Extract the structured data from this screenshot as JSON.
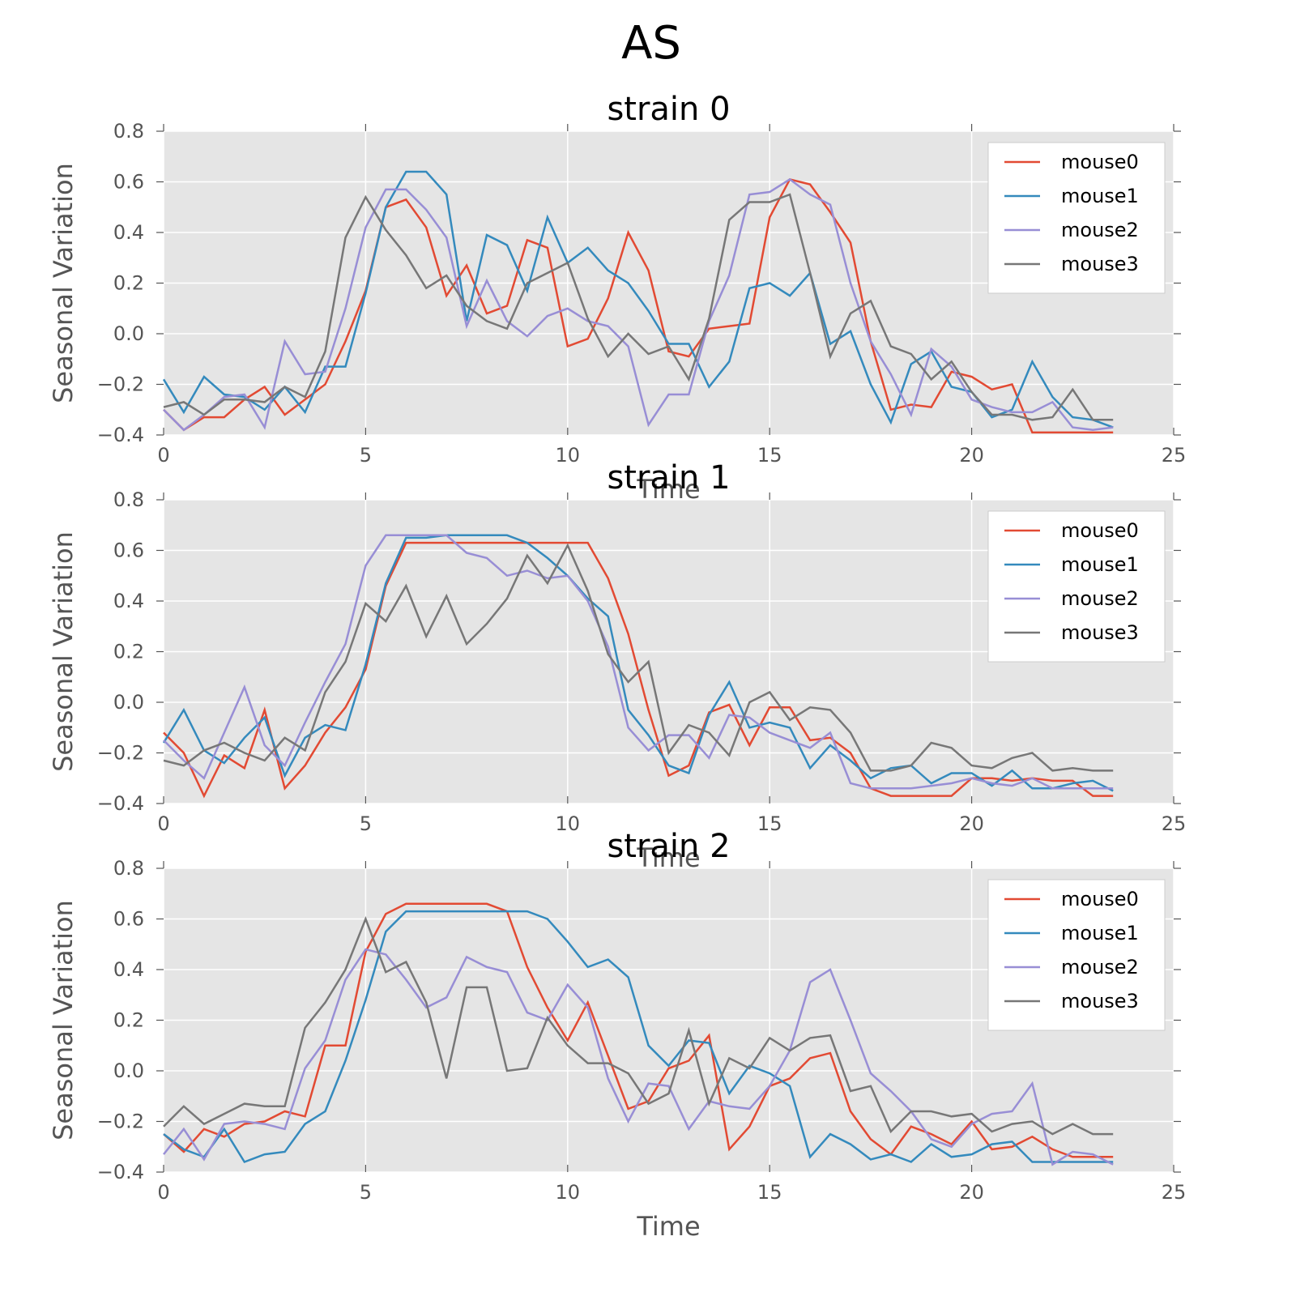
{
  "figure": {
    "title": "AS"
  },
  "colors": {
    "background": "#E5E5E5",
    "grid": "#FFFFFF",
    "series": [
      "#E24A33",
      "#348ABD",
      "#988ED5",
      "#777777"
    ]
  },
  "chart_data": [
    {
      "type": "line",
      "title": "strain 0",
      "xlabel": "Time",
      "ylabel": "Seasonal Variation",
      "xlim": [
        0,
        25
      ],
      "ylim": [
        -0.4,
        0.8
      ],
      "xticks": [
        "0",
        "5",
        "10",
        "15",
        "20",
        "25"
      ],
      "yticks": [
        "−0.4",
        "−0.2",
        "0.0",
        "0.2",
        "0.4",
        "0.6",
        "0.8"
      ],
      "grid": true,
      "legend": "top-right",
      "x": [
        0,
        0.5,
        1,
        1.5,
        2,
        2.5,
        3,
        3.5,
        4,
        4.5,
        5,
        5.5,
        6,
        6.5,
        7,
        7.5,
        8,
        8.5,
        9,
        9.5,
        10,
        10.5,
        11,
        11.5,
        12,
        12.5,
        13,
        13.5,
        14,
        14.5,
        15,
        15.5,
        16,
        16.5,
        17,
        17.5,
        18,
        18.5,
        19,
        19.5,
        20,
        20.5,
        21,
        21.5,
        22,
        22.5,
        23,
        23.5
      ],
      "series": [
        {
          "name": "mouse0",
          "values": [
            -0.3,
            -0.38,
            -0.33,
            -0.33,
            -0.26,
            -0.21,
            -0.32,
            -0.26,
            -0.2,
            -0.03,
            0.17,
            0.5,
            0.53,
            0.42,
            0.15,
            0.27,
            0.08,
            0.11,
            0.37,
            0.34,
            -0.05,
            -0.02,
            0.14,
            0.4,
            0.25,
            -0.07,
            -0.09,
            0.02,
            0.03,
            0.04,
            0.46,
            0.61,
            0.59,
            0.48,
            0.36,
            -0.03,
            -0.3,
            -0.28,
            -0.29,
            -0.15,
            -0.17,
            -0.22,
            -0.2,
            -0.39,
            -0.39,
            -0.39,
            -0.39,
            -0.39
          ]
        },
        {
          "name": "mouse1",
          "values": [
            -0.18,
            -0.31,
            -0.17,
            -0.24,
            -0.25,
            -0.3,
            -0.21,
            -0.31,
            -0.13,
            -0.13,
            0.16,
            0.5,
            0.64,
            0.64,
            0.55,
            0.05,
            0.39,
            0.35,
            0.17,
            0.46,
            0.28,
            0.34,
            0.25,
            0.2,
            0.09,
            -0.04,
            -0.04,
            -0.21,
            -0.11,
            0.18,
            0.2,
            0.15,
            0.24,
            -0.04,
            0.01,
            -0.2,
            -0.35,
            -0.12,
            -0.07,
            -0.21,
            -0.23,
            -0.33,
            -0.3,
            -0.11,
            -0.25,
            -0.33,
            -0.34,
            -0.37
          ]
        },
        {
          "name": "mouse2",
          "values": [
            -0.3,
            -0.38,
            -0.32,
            -0.25,
            -0.24,
            -0.37,
            -0.03,
            -0.16,
            -0.15,
            0.1,
            0.42,
            0.57,
            0.57,
            0.49,
            0.38,
            0.03,
            0.21,
            0.05,
            -0.01,
            0.07,
            0.1,
            0.05,
            0.03,
            -0.05,
            -0.36,
            -0.24,
            -0.24,
            0.05,
            0.23,
            0.55,
            0.56,
            0.61,
            0.55,
            0.51,
            0.2,
            -0.03,
            -0.16,
            -0.32,
            -0.06,
            -0.13,
            -0.26,
            -0.29,
            -0.31,
            -0.31,
            -0.27,
            -0.37,
            -0.38,
            -0.37
          ]
        },
        {
          "name": "mouse3",
          "values": [
            -0.29,
            -0.27,
            -0.32,
            -0.26,
            -0.26,
            -0.27,
            -0.21,
            -0.25,
            -0.07,
            0.38,
            0.54,
            0.41,
            0.31,
            0.18,
            0.23,
            0.11,
            0.05,
            0.02,
            0.2,
            0.24,
            0.28,
            0.06,
            -0.09,
            0.0,
            -0.08,
            -0.05,
            -0.18,
            0.06,
            0.45,
            0.52,
            0.52,
            0.55,
            0.24,
            -0.09,
            0.08,
            0.13,
            -0.05,
            -0.08,
            -0.18,
            -0.11,
            -0.23,
            -0.32,
            -0.32,
            -0.34,
            -0.33,
            -0.22,
            -0.34,
            -0.34
          ]
        }
      ]
    },
    {
      "type": "line",
      "title": "strain 1",
      "xlabel": "Time",
      "ylabel": "Seasonal Variation",
      "xlim": [
        0,
        25
      ],
      "ylim": [
        -0.4,
        0.8
      ],
      "xticks": [
        "0",
        "5",
        "10",
        "15",
        "20",
        "25"
      ],
      "yticks": [
        "−0.4",
        "−0.2",
        "0.0",
        "0.2",
        "0.4",
        "0.6",
        "0.8"
      ],
      "grid": true,
      "legend": "top-right",
      "x": [
        0,
        0.5,
        1,
        1.5,
        2,
        2.5,
        3,
        3.5,
        4,
        4.5,
        5,
        5.5,
        6,
        6.5,
        7,
        7.5,
        8,
        8.5,
        9,
        9.5,
        10,
        10.5,
        11,
        11.5,
        12,
        12.5,
        13,
        13.5,
        14,
        14.5,
        15,
        15.5,
        16,
        16.5,
        17,
        17.5,
        18,
        18.5,
        19,
        19.5,
        20,
        20.5,
        21,
        21.5,
        22,
        22.5,
        23,
        23.5
      ],
      "series": [
        {
          "name": "mouse0",
          "values": [
            -0.12,
            -0.2,
            -0.37,
            -0.21,
            -0.26,
            -0.03,
            -0.34,
            -0.25,
            -0.12,
            -0.02,
            0.13,
            0.46,
            0.63,
            0.63,
            0.63,
            0.63,
            0.63,
            0.63,
            0.63,
            0.63,
            0.63,
            0.63,
            0.49,
            0.27,
            -0.03,
            -0.29,
            -0.25,
            -0.04,
            -0.01,
            -0.17,
            -0.02,
            -0.02,
            -0.15,
            -0.14,
            -0.2,
            -0.34,
            -0.37,
            -0.37,
            -0.37,
            -0.37,
            -0.3,
            -0.3,
            -0.31,
            -0.3,
            -0.31,
            -0.31,
            -0.37,
            -0.37
          ]
        },
        {
          "name": "mouse1",
          "values": [
            -0.16,
            -0.03,
            -0.19,
            -0.24,
            -0.14,
            -0.06,
            -0.29,
            -0.14,
            -0.09,
            -0.11,
            0.15,
            0.47,
            0.65,
            0.65,
            0.66,
            0.66,
            0.66,
            0.66,
            0.63,
            0.57,
            0.5,
            0.41,
            0.34,
            -0.03,
            -0.13,
            -0.25,
            -0.28,
            -0.05,
            0.08,
            -0.1,
            -0.08,
            -0.1,
            -0.26,
            -0.17,
            -0.23,
            -0.3,
            -0.26,
            -0.25,
            -0.32,
            -0.28,
            -0.28,
            -0.33,
            -0.27,
            -0.34,
            -0.34,
            -0.32,
            -0.31,
            -0.35
          ]
        },
        {
          "name": "mouse2",
          "values": [
            -0.15,
            -0.23,
            -0.3,
            -0.12,
            0.06,
            -0.17,
            -0.25,
            -0.08,
            0.08,
            0.23,
            0.54,
            0.66,
            0.66,
            0.66,
            0.66,
            0.59,
            0.57,
            0.5,
            0.52,
            0.49,
            0.5,
            0.4,
            0.22,
            -0.1,
            -0.19,
            -0.13,
            -0.13,
            -0.22,
            -0.05,
            -0.06,
            -0.12,
            -0.15,
            -0.18,
            -0.12,
            -0.32,
            -0.34,
            -0.34,
            -0.34,
            -0.33,
            -0.32,
            -0.3,
            -0.32,
            -0.33,
            -0.3,
            -0.34,
            -0.34,
            -0.34,
            -0.34
          ]
        },
        {
          "name": "mouse3",
          "values": [
            -0.23,
            -0.25,
            -0.19,
            -0.16,
            -0.2,
            -0.23,
            -0.14,
            -0.19,
            0.04,
            0.16,
            0.39,
            0.32,
            0.46,
            0.26,
            0.42,
            0.23,
            0.31,
            0.41,
            0.58,
            0.47,
            0.62,
            0.44,
            0.19,
            0.08,
            0.16,
            -0.2,
            -0.09,
            -0.12,
            -0.21,
            0.0,
            0.04,
            -0.07,
            -0.02,
            -0.03,
            -0.12,
            -0.27,
            -0.27,
            -0.25,
            -0.16,
            -0.18,
            -0.25,
            -0.26,
            -0.22,
            -0.2,
            -0.27,
            -0.26,
            -0.27,
            -0.27
          ]
        }
      ]
    },
    {
      "type": "line",
      "title": "strain 2",
      "xlabel": "Time",
      "ylabel": "Seasonal Variation",
      "xlim": [
        0,
        25
      ],
      "ylim": [
        -0.4,
        0.8
      ],
      "xticks": [
        "0",
        "5",
        "10",
        "15",
        "20",
        "25"
      ],
      "yticks": [
        "−0.4",
        "−0.2",
        "0.0",
        "0.2",
        "0.4",
        "0.6",
        "0.8"
      ],
      "grid": true,
      "legend": "top-right",
      "x": [
        0,
        0.5,
        1,
        1.5,
        2,
        2.5,
        3,
        3.5,
        4,
        4.5,
        5,
        5.5,
        6,
        6.5,
        7,
        7.5,
        8,
        8.5,
        9,
        9.5,
        10,
        10.5,
        11,
        11.5,
        12,
        12.5,
        13,
        13.5,
        14,
        14.5,
        15,
        15.5,
        16,
        16.5,
        17,
        17.5,
        18,
        18.5,
        19,
        19.5,
        20,
        20.5,
        21,
        21.5,
        22,
        22.5,
        23,
        23.5
      ],
      "series": [
        {
          "name": "mouse0",
          "values": [
            -0.25,
            -0.32,
            -0.23,
            -0.26,
            -0.21,
            -0.2,
            -0.16,
            -0.18,
            0.1,
            0.1,
            0.47,
            0.62,
            0.66,
            0.66,
            0.66,
            0.66,
            0.66,
            0.63,
            0.41,
            0.25,
            0.12,
            0.27,
            0.06,
            -0.15,
            -0.12,
            0.01,
            0.04,
            0.14,
            -0.31,
            -0.22,
            -0.06,
            -0.03,
            0.05,
            0.07,
            -0.16,
            -0.27,
            -0.33,
            -0.22,
            -0.25,
            -0.29,
            -0.2,
            -0.31,
            -0.3,
            -0.26,
            -0.31,
            -0.34,
            -0.34,
            -0.34
          ]
        },
        {
          "name": "mouse1",
          "values": [
            -0.25,
            -0.31,
            -0.34,
            -0.23,
            -0.36,
            -0.33,
            -0.32,
            -0.21,
            -0.16,
            0.04,
            0.28,
            0.55,
            0.63,
            0.63,
            0.63,
            0.63,
            0.63,
            0.63,
            0.63,
            0.6,
            0.51,
            0.41,
            0.44,
            0.37,
            0.1,
            0.02,
            0.12,
            0.11,
            -0.09,
            0.02,
            -0.01,
            -0.06,
            -0.34,
            -0.25,
            -0.29,
            -0.35,
            -0.33,
            -0.36,
            -0.29,
            -0.34,
            -0.33,
            -0.29,
            -0.28,
            -0.36,
            -0.36,
            -0.36,
            -0.36,
            -0.36
          ]
        },
        {
          "name": "mouse2",
          "values": [
            -0.33,
            -0.23,
            -0.35,
            -0.21,
            -0.2,
            -0.21,
            -0.23,
            0.01,
            0.12,
            0.36,
            0.48,
            0.46,
            0.36,
            0.25,
            0.29,
            0.45,
            0.41,
            0.39,
            0.23,
            0.2,
            0.34,
            0.25,
            -0.03,
            -0.2,
            -0.05,
            -0.06,
            -0.23,
            -0.12,
            -0.14,
            -0.15,
            -0.06,
            0.08,
            0.35,
            0.4,
            0.2,
            -0.01,
            -0.08,
            -0.16,
            -0.27,
            -0.3,
            -0.21,
            -0.17,
            -0.16,
            -0.05,
            -0.37,
            -0.32,
            -0.33,
            -0.37
          ]
        },
        {
          "name": "mouse3",
          "values": [
            -0.22,
            -0.14,
            -0.21,
            -0.17,
            -0.13,
            -0.14,
            -0.14,
            0.17,
            0.27,
            0.4,
            0.6,
            0.39,
            0.43,
            0.27,
            -0.03,
            0.33,
            0.33,
            0.0,
            0.01,
            0.21,
            0.1,
            0.03,
            0.03,
            -0.01,
            -0.13,
            -0.09,
            0.16,
            -0.13,
            0.05,
            0.01,
            0.13,
            0.08,
            0.13,
            0.14,
            -0.08,
            -0.06,
            -0.24,
            -0.16,
            -0.16,
            -0.18,
            -0.17,
            -0.24,
            -0.21,
            -0.2,
            -0.25,
            -0.21,
            -0.25,
            -0.25
          ]
        }
      ]
    }
  ]
}
